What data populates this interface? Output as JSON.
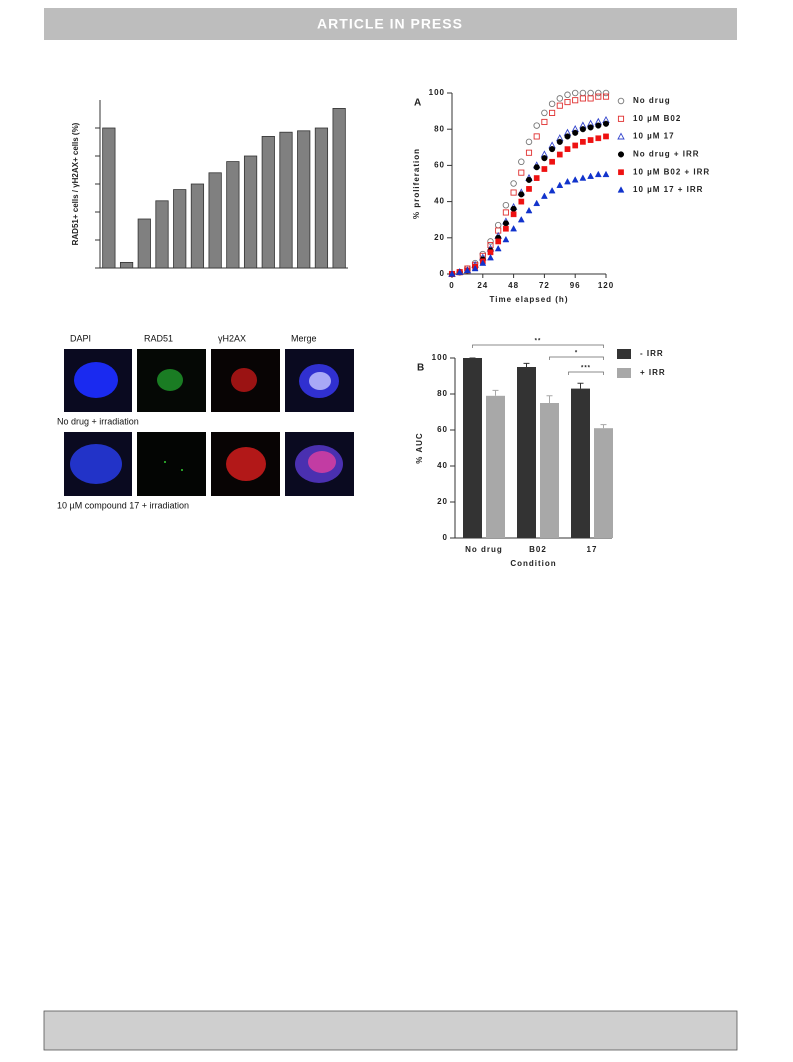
{
  "header": {
    "title": "ARTICLE IN PRESS"
  },
  "figure_panel": {
    "channels": [
      "DAPI",
      "RAD51",
      "γH2AX",
      "Merge"
    ],
    "rows": [
      "No drug + irradiation",
      "10 µM compound 17 + irradiation"
    ]
  },
  "chart_data": [
    {
      "type": "bar",
      "y_label": "RAD51+ cells / γH2AX+ cells (%)",
      "categories": [
        null,
        null,
        null,
        null,
        null,
        null,
        null,
        null,
        null,
        null,
        null,
        null,
        null,
        null
      ],
      "values": [
        5.0,
        0.2,
        1.75,
        2.4,
        2.8,
        3.0,
        3.4,
        3.8,
        4.0,
        4.7,
        4.85,
        4.9,
        5.0,
        5.7
      ],
      "color": "#808080",
      "ylim": [
        0,
        6
      ],
      "yticks": [
        0,
        1,
        2,
        3,
        4,
        5
      ],
      "tick_labels": false
    },
    {
      "type": "line",
      "panel_label": "A",
      "x_label": "Time elapsed (h)",
      "y_label": "% proliferation",
      "x": [
        0,
        6,
        12,
        18,
        24,
        30,
        36,
        42,
        48,
        54,
        60,
        66,
        72,
        78,
        84,
        90,
        96,
        102,
        108,
        114,
        120
      ],
      "xlim": [
        0,
        120
      ],
      "xticks": [
        0,
        24,
        48,
        72,
        96,
        120
      ],
      "ylim": [
        0,
        100
      ],
      "yticks": [
        0,
        20,
        40,
        60,
        80,
        100
      ],
      "series": [
        {
          "name": "No drug",
          "color": "#777777",
          "marker": "circle-open",
          "values": [
            0,
            1,
            3,
            6,
            11,
            18,
            27,
            38,
            50,
            62,
            73,
            82,
            89,
            94,
            97,
            99,
            100,
            100,
            100,
            100,
            100
          ]
        },
        {
          "name": "10 µM B02",
          "color": "#e03030",
          "marker": "square-open",
          "values": [
            0,
            1,
            3,
            5,
            10,
            16,
            24,
            34,
            45,
            56,
            67,
            76,
            84,
            89,
            93,
            95,
            96,
            97,
            97,
            98,
            98
          ]
        },
        {
          "name": "10 µM 17",
          "color": "#3344cc",
          "marker": "triangle-open",
          "values": [
            0,
            1,
            2,
            5,
            9,
            14,
            21,
            29,
            37,
            45,
            53,
            60,
            66,
            71,
            75,
            78,
            80,
            82,
            83,
            84,
            85
          ]
        },
        {
          "name": "No drug + IRR",
          "color": "#000000",
          "marker": "circle",
          "values": [
            0,
            1,
            2,
            4,
            8,
            13,
            20,
            28,
            36,
            44,
            52,
            59,
            64,
            69,
            73,
            76,
            78,
            80,
            81,
            82,
            83
          ]
        },
        {
          "name": "10 µM B02 + IRR",
          "color": "#ee1111",
          "marker": "square",
          "values": [
            0,
            1,
            2,
            4,
            7,
            12,
            18,
            25,
            33,
            40,
            47,
            53,
            58,
            62,
            66,
            69,
            71,
            73,
            74,
            75,
            76
          ]
        },
        {
          "name": "10 µM 17 + IRR",
          "color": "#1133cc",
          "marker": "triangle",
          "values": [
            0,
            1,
            2,
            3,
            6,
            9,
            14,
            19,
            25,
            30,
            35,
            39,
            43,
            46,
            49,
            51,
            52,
            53,
            54,
            55,
            55
          ]
        }
      ]
    },
    {
      "type": "grouped_bar",
      "panel_label": "B",
      "x_label": "Condition",
      "y_label": "% AUC",
      "categories": [
        "No drug",
        "B02",
        "17"
      ],
      "ylim": [
        0,
        100
      ],
      "yticks": [
        0,
        20,
        40,
        60,
        80,
        100
      ],
      "series": [
        {
          "name": "- IRR",
          "color": "#333333",
          "values": [
            100,
            95,
            83
          ],
          "errors": [
            0,
            2,
            3
          ]
        },
        {
          "name": "+ IRR",
          "color": "#a8a8a8",
          "values": [
            79,
            75,
            61
          ],
          "errors": [
            3,
            4,
            2
          ]
        }
      ],
      "annotations": [
        "**",
        "*",
        "***"
      ]
    }
  ]
}
